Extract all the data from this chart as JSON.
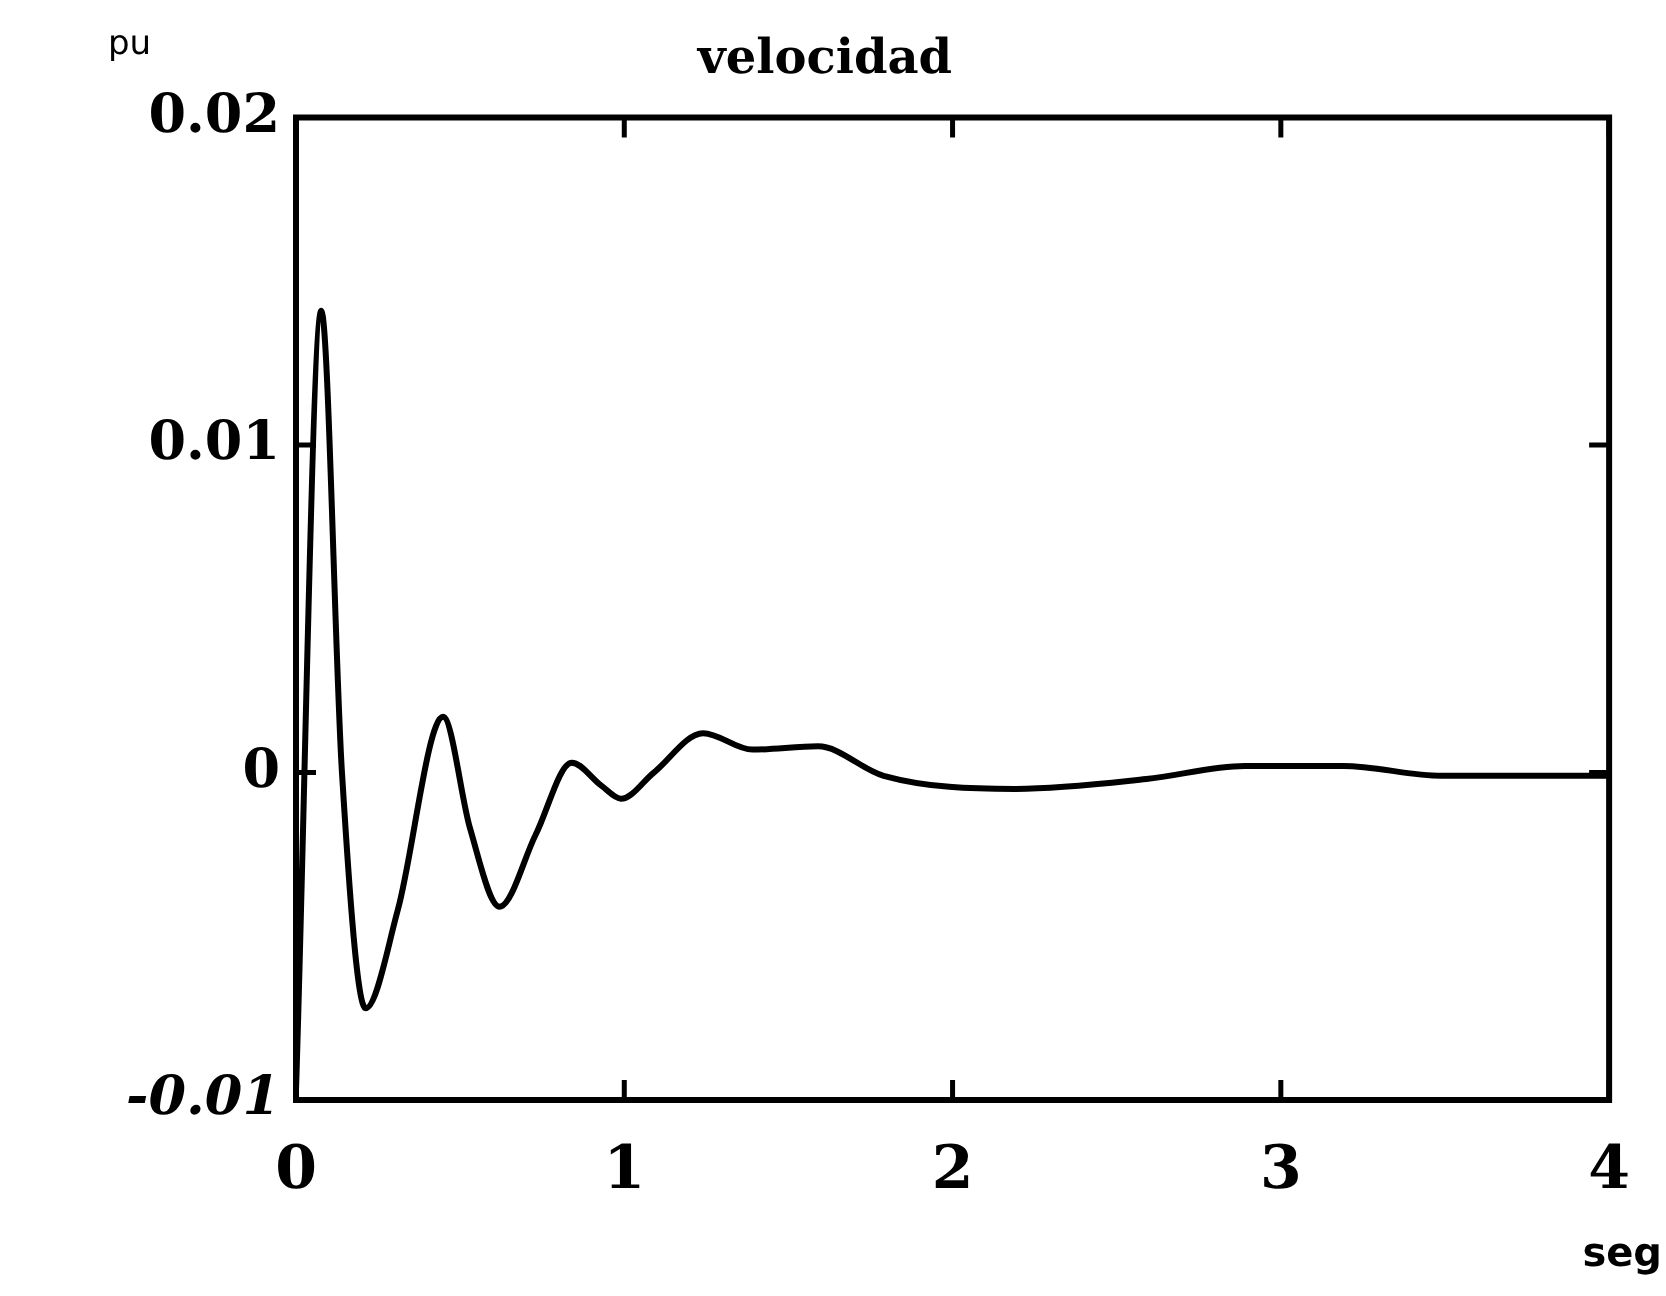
{
  "chart_data": {
    "type": "line",
    "title": "velocidad",
    "xlabel": "seg",
    "ylabel": "pu",
    "x": [
      0,
      0.077,
      0.14,
      0.212,
      0.31,
      0.448,
      0.53,
      0.62,
      0.73,
      0.84,
      0.93,
      0.99,
      1.09,
      1.24,
      1.39,
      1.59,
      1.79,
      2.19,
      2.59,
      2.89,
      3.19,
      3.49,
      3.99
    ],
    "series": [
      {
        "color": "#000000",
        "values": [
          -0.0097,
          0.0141,
          0,
          -0.0072,
          -0.0042,
          0.0017,
          -0.0017,
          -0.0041,
          -0.0019,
          0.0003,
          -0.0004,
          -0.0008,
          0,
          0.0012,
          0.0007,
          0.0008,
          -0.0001,
          -0.0005,
          -0.0002,
          0.0002,
          0.0002,
          -0.0001,
          -0.0001
        ]
      }
    ],
    "xlim": [
      0,
      4
    ],
    "xticks": [
      0,
      1,
      2,
      3,
      4
    ],
    "ylim": [
      -0.01,
      0.02
    ],
    "yticks": [
      -0.01,
      0,
      0.01,
      0.02
    ],
    "grid": false,
    "legend": false,
    "marker": "none",
    "line_style": "solid"
  }
}
